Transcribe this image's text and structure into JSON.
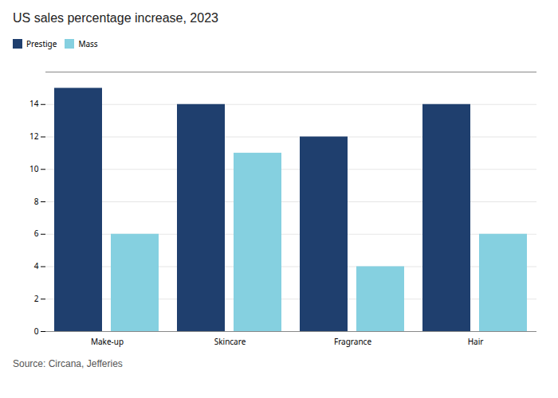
{
  "chart_data": {
    "type": "bar",
    "title": "US sales percentage increase, 2023",
    "categories": [
      "Make-up",
      "Skincare",
      "Fragrance",
      "Hair"
    ],
    "series": [
      {
        "name": "Prestige",
        "color": "#1f3f6e",
        "values": [
          15,
          14,
          12,
          14
        ]
      },
      {
        "name": "Mass",
        "color": "#85d0e0",
        "values": [
          6,
          11,
          4,
          6
        ]
      }
    ],
    "ylim": [
      0,
      16
    ],
    "yticks": [
      0,
      2,
      4,
      6,
      8,
      10,
      12,
      14
    ],
    "grid": true,
    "legend": "top",
    "annotations": [
      "Source: Circana, Jefferies"
    ]
  }
}
